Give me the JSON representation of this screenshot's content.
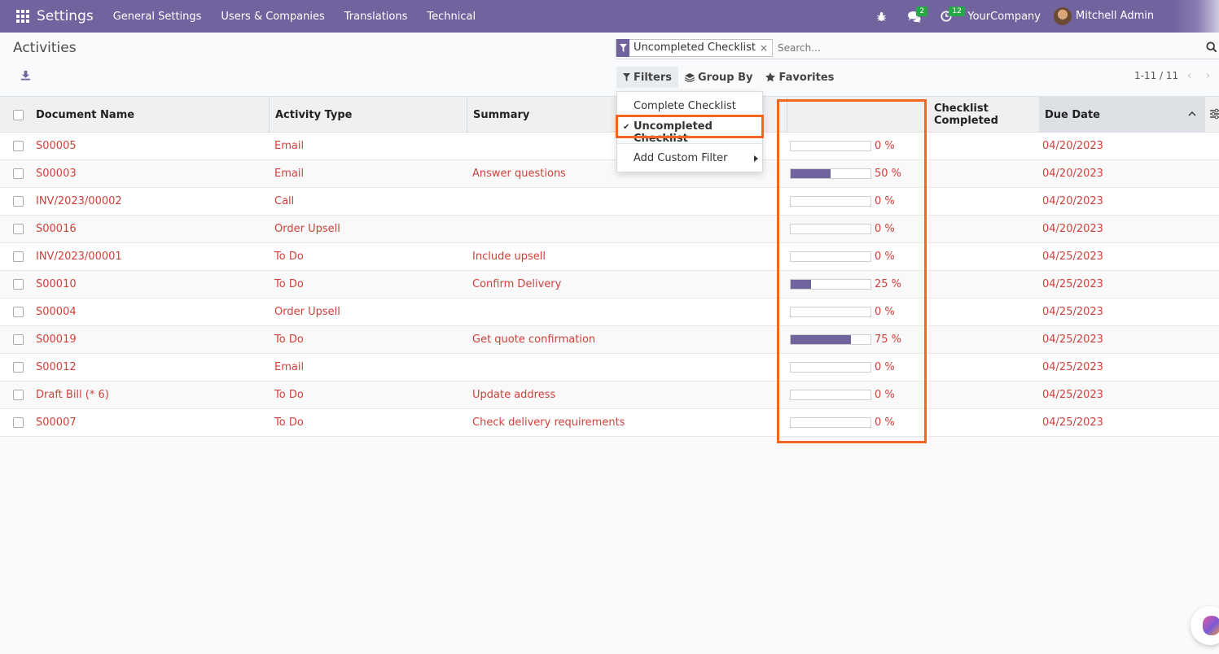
{
  "navbar": {
    "app_name": "Settings",
    "menus": [
      "General Settings",
      "Users & Companies",
      "Translations",
      "Technical"
    ],
    "messages_badge": "2",
    "activities_badge": "12",
    "company": "YourCompany",
    "user": "Mitchell Admin"
  },
  "page": {
    "title": "Activities"
  },
  "search": {
    "facet": "Uncompleted Checklist",
    "placeholder": "Search..."
  },
  "filters": {
    "filters_label": "Filters",
    "groupby_label": "Group By",
    "favorites_label": "Favorites"
  },
  "dropdown": {
    "items": [
      "Complete Checklist",
      "Uncompleted Checklist"
    ],
    "custom": "Add Custom Filter"
  },
  "pager": {
    "text": "1-11 / 11"
  },
  "table": {
    "headers": {
      "document": "Document Name",
      "activity": "Activity Type",
      "summary": "Summary",
      "progress": "",
      "checklist": "Checklist Completed",
      "due": "Due Date"
    },
    "rows": [
      {
        "document": "S00005",
        "activity": "Email",
        "summary": "",
        "progress_pct": 0,
        "progress_label": "0 %",
        "due": "04/20/2023"
      },
      {
        "document": "S00003",
        "activity": "Email",
        "summary": "Answer questions",
        "progress_pct": 50,
        "progress_label": "50 %",
        "due": "04/20/2023"
      },
      {
        "document": "INV/2023/00002",
        "activity": "Call",
        "summary": "",
        "progress_pct": 0,
        "progress_label": "0 %",
        "due": "04/20/2023"
      },
      {
        "document": "S00016",
        "activity": "Order Upsell",
        "summary": "",
        "progress_pct": 0,
        "progress_label": "0 %",
        "due": "04/20/2023"
      },
      {
        "document": "INV/2023/00001",
        "activity": "To Do",
        "summary": "Include upsell",
        "progress_pct": 0,
        "progress_label": "0 %",
        "due": "04/25/2023"
      },
      {
        "document": "S00010",
        "activity": "To Do",
        "summary": "Confirm Delivery",
        "progress_pct": 25,
        "progress_label": "25 %",
        "due": "04/25/2023"
      },
      {
        "document": "S00004",
        "activity": "Order Upsell",
        "summary": "",
        "progress_pct": 0,
        "progress_label": "0 %",
        "due": "04/25/2023"
      },
      {
        "document": "S00019",
        "activity": "To Do",
        "summary": "Get quote confirmation",
        "progress_pct": 75,
        "progress_label": "75 %",
        "due": "04/25/2023"
      },
      {
        "document": "S00012",
        "activity": "Email",
        "summary": "",
        "progress_pct": 0,
        "progress_label": "0 %",
        "due": "04/25/2023"
      },
      {
        "document": "Draft Bill (* 6)",
        "activity": "To Do",
        "summary": "Update address",
        "progress_pct": 0,
        "progress_label": "0 %",
        "due": "04/25/2023"
      },
      {
        "document": "S00007",
        "activity": "To Do",
        "summary": "Check delivery requirements",
        "progress_pct": 0,
        "progress_label": "0 %",
        "due": "04/25/2023"
      }
    ]
  },
  "colors": {
    "brand": "#71639e",
    "link_red": "#d23f3a",
    "highlight": "#f26522"
  }
}
